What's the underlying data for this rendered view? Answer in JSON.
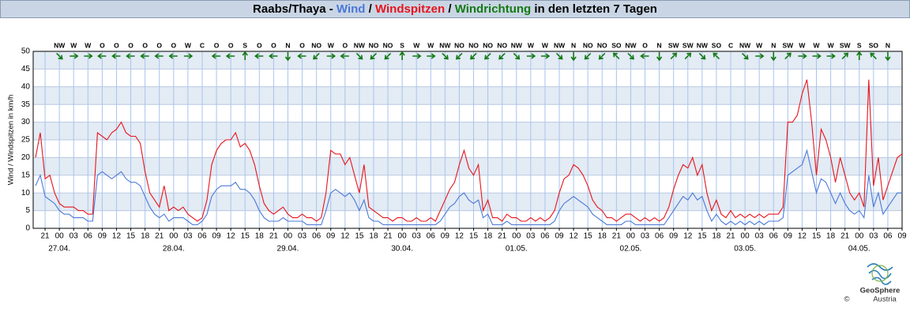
{
  "chart_data": {
    "type": "line",
    "title": {
      "prefix": "Raabs/Thaya - ",
      "sep": " / ",
      "suffix": " in den letzten 7 Tagen",
      "direction_name": "Windrichtung"
    },
    "ylabel": "Wind / Windspitzen in km/h",
    "footer": {
      "brand": "GeoSphere",
      "country": "Austria",
      "copyright": "©"
    },
    "ylim": [
      0,
      50
    ],
    "yticks": [
      0,
      5,
      10,
      15,
      20,
      25,
      30,
      35,
      40,
      45,
      50
    ],
    "grid": true,
    "xlim": [
      "26.04. 18:30",
      "04.05. 09:00"
    ],
    "x": [
      "26.04. 19:00",
      "26.04. 20:00",
      "26.04. 21:00",
      "26.04. 22:00",
      "26.04. 23:00",
      "27.04. 00:00",
      "27.04. 01:00",
      "27.04. 02:00",
      "27.04. 03:00",
      "27.04. 04:00",
      "27.04. 05:00",
      "27.04. 06:00",
      "27.04. 07:00",
      "27.04. 08:00",
      "27.04. 09:00",
      "27.04. 10:00",
      "27.04. 11:00",
      "27.04. 12:00",
      "27.04. 13:00",
      "27.04. 14:00",
      "27.04. 15:00",
      "27.04. 16:00",
      "27.04. 17:00",
      "27.04. 18:00",
      "27.04. 19:00",
      "27.04. 20:00",
      "27.04. 21:00",
      "27.04. 22:00",
      "27.04. 23:00",
      "28.04. 00:00",
      "28.04. 01:00",
      "28.04. 02:00",
      "28.04. 03:00",
      "28.04. 04:00",
      "28.04. 05:00",
      "28.04. 06:00",
      "28.04. 07:00",
      "28.04. 08:00",
      "28.04. 09:00",
      "28.04. 10:00",
      "28.04. 11:00",
      "28.04. 12:00",
      "28.04. 13:00",
      "28.04. 14:00",
      "28.04. 15:00",
      "28.04. 16:00",
      "28.04. 17:00",
      "28.04. 18:00",
      "28.04. 19:00",
      "28.04. 20:00",
      "28.04. 21:00",
      "28.04. 22:00",
      "28.04. 23:00",
      "29.04. 00:00",
      "29.04. 01:00",
      "29.04. 02:00",
      "29.04. 03:00",
      "29.04. 04:00",
      "29.04. 05:00",
      "29.04. 06:00",
      "29.04. 07:00",
      "29.04. 08:00",
      "29.04. 09:00",
      "29.04. 10:00",
      "29.04. 11:00",
      "29.04. 12:00",
      "29.04. 13:00",
      "29.04. 14:00",
      "29.04. 15:00",
      "29.04. 16:00",
      "29.04. 17:00",
      "29.04. 18:00",
      "29.04. 19:00",
      "29.04. 20:00",
      "29.04. 21:00",
      "29.04. 22:00",
      "29.04. 23:00",
      "30.04. 00:00",
      "30.04. 01:00",
      "30.04. 02:00",
      "30.04. 03:00",
      "30.04. 04:00",
      "30.04. 05:00",
      "30.04. 06:00",
      "30.04. 07:00",
      "30.04. 08:00",
      "30.04. 09:00",
      "30.04. 10:00",
      "30.04. 11:00",
      "30.04. 12:00",
      "30.04. 13:00",
      "30.04. 14:00",
      "30.04. 15:00",
      "30.04. 16:00",
      "30.04. 17:00",
      "30.04. 18:00",
      "30.04. 19:00",
      "30.04. 20:00",
      "30.04. 21:00",
      "30.04. 22:00",
      "30.04. 23:00",
      "01.05. 00:00",
      "01.05. 01:00",
      "01.05. 02:00",
      "01.05. 03:00",
      "01.05. 04:00",
      "01.05. 05:00",
      "01.05. 06:00",
      "01.05. 07:00",
      "01.05. 08:00",
      "01.05. 09:00",
      "01.05. 10:00",
      "01.05. 11:00",
      "01.05. 12:00",
      "01.05. 13:00",
      "01.05. 14:00",
      "01.05. 15:00",
      "01.05. 16:00",
      "01.05. 17:00",
      "01.05. 18:00",
      "01.05. 19:00",
      "01.05. 20:00",
      "01.05. 21:00",
      "01.05. 22:00",
      "01.05. 23:00",
      "02.05. 00:00",
      "02.05. 01:00",
      "02.05. 02:00",
      "02.05. 03:00",
      "02.05. 04:00",
      "02.05. 05:00",
      "02.05. 06:00",
      "02.05. 07:00",
      "02.05. 08:00",
      "02.05. 09:00",
      "02.05. 10:00",
      "02.05. 11:00",
      "02.05. 12:00",
      "02.05. 13:00",
      "02.05. 14:00",
      "02.05. 15:00",
      "02.05. 16:00",
      "02.05. 17:00",
      "02.05. 18:00",
      "02.05. 19:00",
      "02.05. 20:00",
      "02.05. 21:00",
      "02.05. 22:00",
      "02.05. 23:00",
      "03.05. 00:00",
      "03.05. 01:00",
      "03.05. 02:00",
      "03.05. 03:00",
      "03.05. 04:00",
      "03.05. 05:00",
      "03.05. 06:00",
      "03.05. 07:00",
      "03.05. 08:00",
      "03.05. 09:00",
      "03.05. 10:00",
      "03.05. 11:00",
      "03.05. 12:00",
      "03.05. 13:00",
      "03.05. 14:00",
      "03.05. 15:00",
      "03.05. 16:00",
      "03.05. 17:00",
      "03.05. 18:00",
      "03.05. 19:00",
      "03.05. 20:00",
      "03.05. 21:00",
      "03.05. 22:00",
      "03.05. 23:00",
      "04.05. 00:00",
      "04.05. 01:00",
      "04.05. 02:00",
      "04.05. 03:00",
      "04.05. 04:00",
      "04.05. 05:00",
      "04.05. 06:00",
      "04.05. 07:00",
      "04.05. 08:00",
      "04.05. 09:00"
    ],
    "series": [
      {
        "name": "Wind",
        "color": "#4a78d8",
        "values": [
          12,
          15,
          9,
          8,
          7,
          5,
          4,
          4,
          3,
          3,
          3,
          2,
          2,
          15,
          16,
          15,
          14,
          15,
          16,
          14,
          13,
          13,
          12,
          9,
          6,
          4,
          3,
          4,
          2,
          3,
          3,
          3,
          2,
          1,
          1,
          2,
          4,
          9,
          11,
          12,
          12,
          12,
          13,
          11,
          11,
          10,
          8,
          5,
          3,
          2,
          2,
          2,
          3,
          2,
          2,
          2,
          2,
          1,
          1,
          1,
          1,
          5,
          10,
          11,
          10,
          9,
          10,
          8,
          5,
          8,
          3,
          2,
          2,
          1,
          1,
          1,
          1,
          1,
          1,
          1,
          1,
          1,
          1,
          1,
          1,
          2,
          4,
          6,
          7,
          9,
          10,
          8,
          7,
          8,
          3,
          4,
          1,
          1,
          1,
          2,
          1,
          1,
          1,
          1,
          1,
          1,
          1,
          1,
          1,
          2,
          5,
          7,
          8,
          9,
          8,
          7,
          6,
          4,
          3,
          2,
          1,
          1,
          1,
          1,
          2,
          2,
          1,
          1,
          1,
          1,
          1,
          1,
          1,
          3,
          5,
          7,
          9,
          8,
          10,
          8,
          9,
          5,
          2,
          4,
          2,
          1,
          2,
          1,
          2,
          1,
          2,
          1,
          2,
          1,
          2,
          2,
          2,
          3,
          15,
          16,
          17,
          18,
          22,
          16,
          10,
          14,
          13,
          10,
          7,
          10,
          7,
          5,
          4,
          5,
          3,
          15,
          6,
          10,
          4,
          6,
          8,
          10,
          10
        ]
      },
      {
        "name": "Windspitzen",
        "color": "#e8141c",
        "values": [
          20,
          27,
          14,
          15,
          10,
          7,
          6,
          6,
          6,
          5,
          5,
          4,
          4,
          27,
          26,
          25,
          27,
          28,
          30,
          27,
          26,
          26,
          24,
          16,
          10,
          8,
          6,
          12,
          5,
          6,
          5,
          6,
          4,
          3,
          2,
          3,
          8,
          18,
          22,
          24,
          25,
          25,
          27,
          23,
          24,
          22,
          18,
          12,
          7,
          5,
          4,
          5,
          6,
          4,
          3,
          3,
          4,
          3,
          3,
          2,
          3,
          10,
          22,
          21,
          21,
          18,
          20,
          15,
          10,
          18,
          6,
          5,
          4,
          3,
          3,
          2,
          3,
          3,
          2,
          2,
          3,
          2,
          2,
          3,
          2,
          5,
          8,
          11,
          13,
          18,
          22,
          17,
          15,
          18,
          5,
          8,
          3,
          3,
          2,
          4,
          3,
          3,
          2,
          2,
          3,
          2,
          3,
          2,
          3,
          5,
          10,
          14,
          15,
          18,
          17,
          15,
          12,
          8,
          6,
          5,
          3,
          3,
          2,
          3,
          4,
          4,
          3,
          2,
          3,
          2,
          3,
          2,
          3,
          6,
          11,
          15,
          18,
          17,
          20,
          15,
          18,
          10,
          5,
          8,
          4,
          3,
          5,
          3,
          4,
          3,
          4,
          3,
          4,
          3,
          4,
          4,
          4,
          6,
          30,
          30,
          32,
          38,
          42,
          30,
          15,
          28,
          25,
          20,
          13,
          20,
          15,
          10,
          8,
          10,
          6,
          42,
          12,
          20,
          8,
          12,
          16,
          20,
          21
        ]
      }
    ],
    "direction_color": "#127a12",
    "xticks": [
      {
        "value": "26.04. 21:00",
        "label": "21"
      },
      {
        "value": "27.04. 00:00",
        "label": "00"
      },
      {
        "value": "27.04. 03:00",
        "label": "03"
      },
      {
        "value": "27.04. 06:00",
        "label": "06"
      },
      {
        "value": "27.04. 09:00",
        "label": "09"
      },
      {
        "value": "27.04. 12:00",
        "label": "12"
      },
      {
        "value": "27.04. 15:00",
        "label": "15"
      },
      {
        "value": "27.04. 18:00",
        "label": "18"
      },
      {
        "value": "27.04. 21:00",
        "label": "21"
      },
      {
        "value": "28.04. 00:00",
        "label": "00"
      },
      {
        "value": "28.04. 03:00",
        "label": "03"
      },
      {
        "value": "28.04. 06:00",
        "label": "06"
      },
      {
        "value": "28.04. 09:00",
        "label": "09"
      },
      {
        "value": "28.04. 12:00",
        "label": "12"
      },
      {
        "value": "28.04. 15:00",
        "label": "15"
      },
      {
        "value": "28.04. 18:00",
        "label": "18"
      },
      {
        "value": "28.04. 21:00",
        "label": "21"
      },
      {
        "value": "29.04. 00:00",
        "label": "00"
      },
      {
        "value": "29.04. 03:00",
        "label": "03"
      },
      {
        "value": "29.04. 06:00",
        "label": "06"
      },
      {
        "value": "29.04. 09:00",
        "label": "09"
      },
      {
        "value": "29.04. 12:00",
        "label": "12"
      },
      {
        "value": "29.04. 15:00",
        "label": "15"
      },
      {
        "value": "29.04. 18:00",
        "label": "18"
      },
      {
        "value": "29.04. 21:00",
        "label": "21"
      },
      {
        "value": "30.04. 00:00",
        "label": "00"
      },
      {
        "value": "30.04. 03:00",
        "label": "03"
      },
      {
        "value": "30.04. 06:00",
        "label": "06"
      },
      {
        "value": "30.04. 09:00",
        "label": "09"
      },
      {
        "value": "30.04. 12:00",
        "label": "12"
      },
      {
        "value": "30.04. 15:00",
        "label": "15"
      },
      {
        "value": "30.04. 18:00",
        "label": "18"
      },
      {
        "value": "30.04. 21:00",
        "label": "21"
      },
      {
        "value": "01.05. 00:00",
        "label": "00"
      },
      {
        "value": "01.05. 03:00",
        "label": "03"
      },
      {
        "value": "01.05. 06:00",
        "label": "06"
      },
      {
        "value": "01.05. 09:00",
        "label": "09"
      },
      {
        "value": "01.05. 12:00",
        "label": "12"
      },
      {
        "value": "01.05. 15:00",
        "label": "15"
      },
      {
        "value": "01.05. 18:00",
        "label": "18"
      },
      {
        "value": "01.05. 21:00",
        "label": "21"
      },
      {
        "value": "02.05. 00:00",
        "label": "00"
      },
      {
        "value": "02.05. 03:00",
        "label": "03"
      },
      {
        "value": "02.05. 06:00",
        "label": "06"
      },
      {
        "value": "02.05. 09:00",
        "label": "09"
      },
      {
        "value": "02.05. 12:00",
        "label": "12"
      },
      {
        "value": "02.05. 15:00",
        "label": "15"
      },
      {
        "value": "02.05. 18:00",
        "label": "18"
      },
      {
        "value": "02.05. 21:00",
        "label": "21"
      },
      {
        "value": "03.05. 00:00",
        "label": "00"
      },
      {
        "value": "03.05. 03:00",
        "label": "03"
      },
      {
        "value": "03.05. 06:00",
        "label": "06"
      },
      {
        "value": "03.05. 09:00",
        "label": "09"
      },
      {
        "value": "03.05. 12:00",
        "label": "12"
      },
      {
        "value": "03.05. 15:00",
        "label": "15"
      },
      {
        "value": "03.05. 18:00",
        "label": "18"
      },
      {
        "value": "03.05. 21:00",
        "label": "21"
      },
      {
        "value": "04.05. 00:00",
        "label": "00"
      },
      {
        "value": "04.05. 03:00",
        "label": "03"
      },
      {
        "value": "04.05. 06:00",
        "label": "06"
      },
      {
        "value": "04.05. 09:00",
        "label": "09"
      }
    ],
    "day_labels": [
      {
        "value": "27.04. 00:00",
        "label": "27.04."
      },
      {
        "value": "28.04. 00:00",
        "label": "28.04."
      },
      {
        "value": "29.04. 00:00",
        "label": "29.04."
      },
      {
        "value": "30.04. 00:00",
        "label": "30.04."
      },
      {
        "value": "01.05. 00:00",
        "label": "01.05."
      },
      {
        "value": "02.05. 00:00",
        "label": "02.05."
      },
      {
        "value": "03.05. 00:00",
        "label": "03.05."
      },
      {
        "value": "04.05. 00:00",
        "label": "04.05."
      }
    ],
    "wind_directions": [
      "NW",
      "W",
      "W",
      "O",
      "O",
      "O",
      "O",
      "O",
      "O",
      "W",
      "C",
      "O",
      "O",
      "S",
      "O",
      "O",
      "N",
      "O",
      "NO",
      "W",
      "O",
      "NW",
      "NO",
      "NO",
      "S",
      "W",
      "W",
      "NW",
      "NO",
      "NO",
      "NO",
      "NO",
      "NW",
      "W",
      "W",
      "NW",
      "N",
      "NO",
      "NO",
      "SO",
      "NW",
      "O",
      "N",
      "SW",
      "SW",
      "NW",
      "SO",
      "C",
      "NW",
      "W",
      "N",
      "SW",
      "W",
      "W",
      "W",
      "SW",
      "S",
      "SO",
      "N"
    ]
  }
}
